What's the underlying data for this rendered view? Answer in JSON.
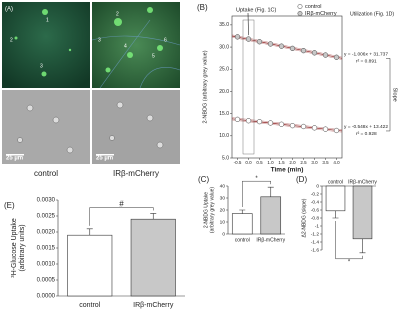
{
  "images": {
    "panel_label": "(A)",
    "panels": [
      {
        "caption": "control",
        "scale_bar": "25 µm",
        "cell_labels": [
          "1",
          "2",
          "3"
        ]
      },
      {
        "caption": "IRβ-mCherry",
        "scale_bar": "25 µm",
        "cell_labels": [
          "2",
          "3",
          "4",
          "5",
          "6"
        ]
      }
    ]
  },
  "chart_data": [
    {
      "type": "scatter",
      "panel_label": "(B)",
      "y_label": "2-NBDG (arbitrary grey value)",
      "x_label": "Time (min)",
      "annotations": [
        "Uptake (Fig. 1C)",
        "Utilization (Fig. 1D)",
        "Slope"
      ],
      "x": [
        -0.5,
        0,
        0.5,
        1,
        1.5,
        2,
        2.5,
        3,
        3.5,
        4
      ],
      "xlim": [
        -0.75,
        4.25
      ],
      "xticks": [
        -0.5,
        {
          "value": 0,
          "label": "0.0"
        },
        0.5,
        {
          "value": 1,
          "label": "1.0"
        },
        1.5,
        {
          "value": 2,
          "label": "2.0"
        },
        2.5,
        {
          "value": 3,
          "label": "3.0"
        },
        3.5,
        {
          "value": 4,
          "label": "4.0"
        }
      ],
      "ylim": [
        5,
        37
      ],
      "yticks": [
        {
          "value": 5,
          "label": "5.0"
        },
        {
          "value": 10,
          "label": "10.0"
        },
        {
          "value": 15,
          "label": "15.0"
        },
        {
          "value": 20,
          "label": "20.0"
        },
        {
          "value": 25,
          "label": "25.0"
        },
        {
          "value": 30,
          "label": "30.0"
        },
        {
          "value": 35,
          "label": "35.0"
        }
      ],
      "series": [
        {
          "name": "control",
          "color": "#ffffff",
          "values": [
            13.7,
            13.4,
            13.2,
            12.9,
            12.6,
            12.3,
            12.1,
            11.8,
            11.5,
            11.2
          ],
          "fit": {
            "slope": -0.548,
            "intercept": 13.422,
            "equation": "y = -0.548x + 13.422",
            "r2": "r² = 0.928"
          }
        },
        {
          "name": "IRβ-mCherry",
          "color": "#c8c8c8",
          "values": [
            32.3,
            31.8,
            31.2,
            30.7,
            30.2,
            29.7,
            29.2,
            28.7,
            28.2,
            27.7
          ],
          "fit": {
            "slope": -1.006,
            "intercept": 31.737,
            "equation": "y = -1.006x + 31.737",
            "r2": "r² = 0.891"
          }
        }
      ]
    },
    {
      "type": "bar",
      "panel_label": "(C)",
      "y_label": [
        "2-NBDG Uptake",
        "(arbitrary grey value)"
      ],
      "categories": [
        "control",
        "IRβ-mCherry"
      ],
      "values": [
        17,
        31
      ],
      "errors": [
        3,
        8
      ],
      "colors": [
        "#ffffff",
        "#c8c8c8"
      ],
      "ylim": [
        0,
        40
      ],
      "yticks": [
        0,
        10,
        20,
        30,
        40
      ],
      "annotation": "*"
    },
    {
      "type": "bar",
      "panel_label": "(D)",
      "y_label": [
        "Δ2-NBDG (slope)"
      ],
      "categories": [
        "control",
        "IRβ-mCherry"
      ],
      "values": [
        -0.62,
        -1.32
      ],
      "errors": [
        0.18,
        0.35
      ],
      "colors": [
        "#ffffff",
        "#c8c8c8"
      ],
      "ylim": [
        -1.6,
        0
      ],
      "yticks": [
        0,
        -0.2,
        -0.4,
        -0.6,
        -0.8,
        -1,
        -1.2,
        -1.4,
        -1.6
      ],
      "annotation": "*"
    },
    {
      "type": "bar",
      "panel_label": "(E)",
      "y_label": [
        "³H-Glucose Uptake",
        "(arbitrary units)"
      ],
      "categories": [
        "control",
        "IRβ-mCherry"
      ],
      "values": [
        0.0019,
        0.0024
      ],
      "errors": [
        0.0002,
        0.00018
      ],
      "colors": [
        "#ffffff",
        "#c8c8c8"
      ],
      "ylim": [
        0,
        0.003
      ],
      "yticks": [
        {
          "value": 0,
          "label": "0.0000"
        },
        {
          "value": 0.0005,
          "label": "0.0005"
        },
        {
          "value": 0.001,
          "label": "0.0010"
        },
        {
          "value": 0.0015,
          "label": "0.0015"
        },
        {
          "value": 0.002,
          "label": "0.0020"
        },
        {
          "value": 0.0025,
          "label": "0.0025"
        },
        {
          "value": 0.003,
          "label": "0.0030"
        }
      ],
      "annotation": "#"
    }
  ]
}
